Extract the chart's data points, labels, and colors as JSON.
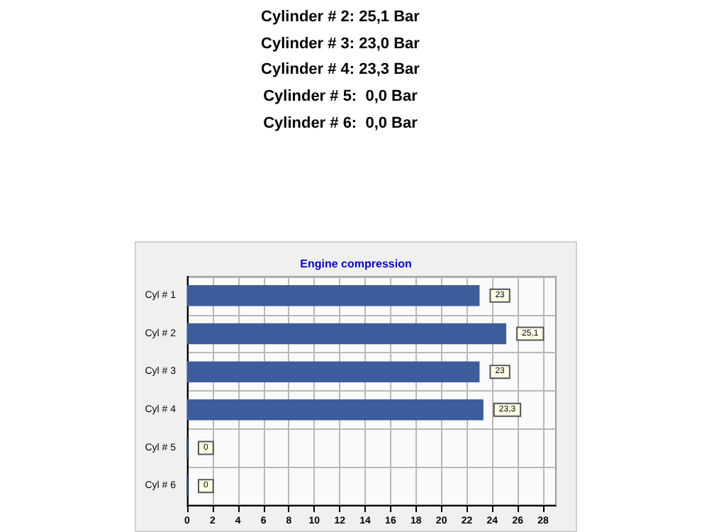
{
  "chart_data": {
    "type": "bar",
    "orientation": "horizontal",
    "title": "Engine compression",
    "annotations": [
      "Cylinder # 2: 25,1 Bar",
      "Cylinder # 3: 23,0 Bar",
      "Cylinder # 4: 23,3 Bar",
      "Cylinder # 5:  0,0 Bar",
      "Cylinder # 6:  0,0 Bar"
    ],
    "categories": [
      "Cyl # 1",
      "Cyl # 2",
      "Cyl # 3",
      "Cyl # 4",
      "Cyl # 5",
      "Cyl # 6"
    ],
    "values": [
      23,
      25.1,
      23,
      23.3,
      0,
      0
    ],
    "value_labels": [
      "23",
      "25,1",
      "23",
      "23,3",
      "0",
      "0"
    ],
    "color": "#3c5c9c",
    "xlim": [
      0,
      29
    ],
    "xticks": [
      0,
      2,
      4,
      6,
      8,
      10,
      12,
      14,
      16,
      18,
      20,
      22,
      24,
      26,
      28
    ],
    "grid": true
  }
}
